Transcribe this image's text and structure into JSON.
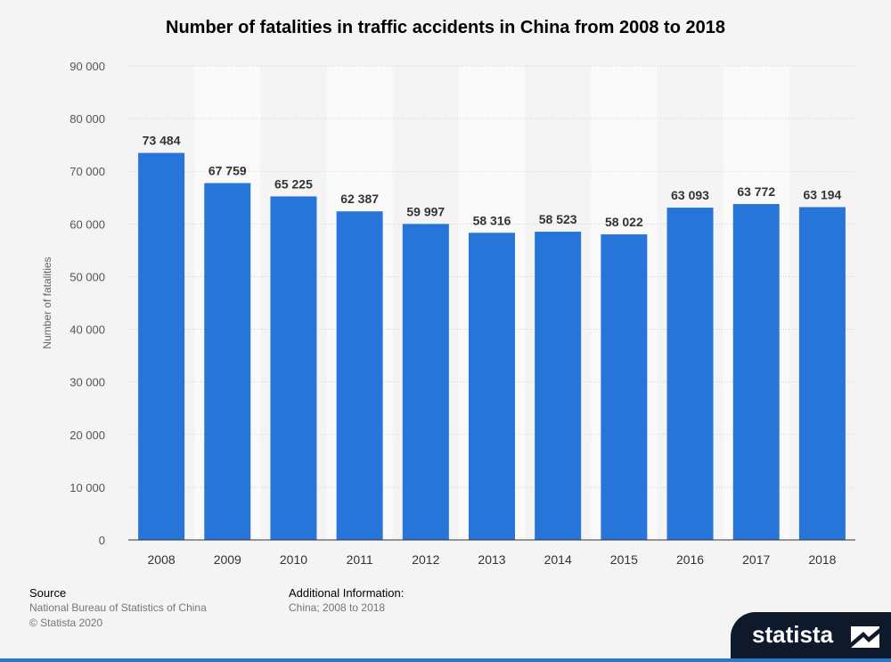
{
  "chart_data": {
    "type": "bar",
    "title": "Number of fatalities in traffic accidents in China from 2008 to 2018",
    "categories": [
      "2008",
      "2009",
      "2010",
      "2011",
      "2012",
      "2013",
      "2014",
      "2015",
      "2016",
      "2017",
      "2018"
    ],
    "values": [
      73484,
      67759,
      65225,
      62387,
      59997,
      58316,
      58523,
      58022,
      63093,
      63772,
      63194
    ],
    "value_labels": [
      "73 484",
      "67 759",
      "65 225",
      "62 387",
      "59 997",
      "58 316",
      "58 523",
      "58 022",
      "63 093",
      "63 772",
      "63 194"
    ],
    "xlabel": "",
    "ylabel": "Number of fatalities",
    "ylim": [
      0,
      90000
    ],
    "yticks": [
      0,
      10000,
      20000,
      30000,
      40000,
      50000,
      60000,
      70000,
      80000,
      90000
    ],
    "ytick_labels": [
      "0",
      "10 000",
      "20 000",
      "30 000",
      "40 000",
      "50 000",
      "60 000",
      "70 000",
      "80 000",
      "90 000"
    ],
    "grid": true,
    "bar_color": "#2875d9"
  },
  "footer": {
    "source_heading": "Source",
    "source_text": "National Bureau of Statistics of China",
    "copyright": "© Statista 2020",
    "additional_heading": "Additional Information:",
    "additional_text": "China; 2008 to 2018"
  },
  "brand": {
    "name": "statista",
    "icon": "statista-logo-icon"
  }
}
